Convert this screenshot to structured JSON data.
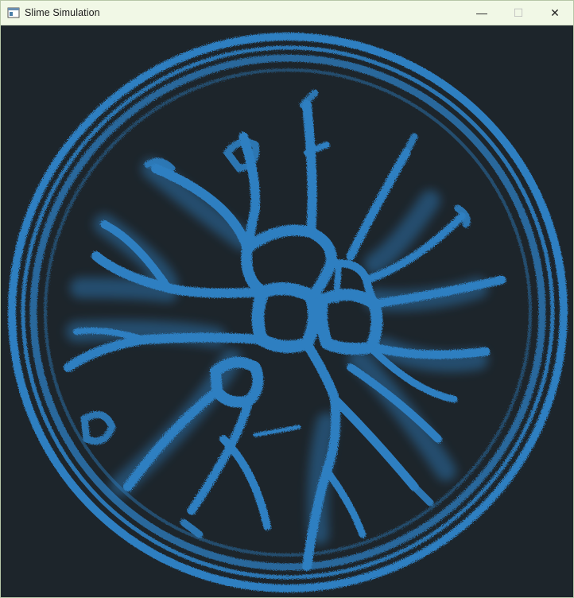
{
  "window": {
    "title": "Slime Simulation",
    "controls": {
      "minimize_icon": "minimize-icon",
      "maximize_icon": "maximize-icon",
      "close_icon": "close-icon",
      "minimize_glyph": "—",
      "maximize_glyph": "☐",
      "close_glyph": "✕"
    }
  },
  "colors": {
    "background": "#1d252b",
    "slime": "#2f7fc1",
    "titlebar": "#f1f8e6"
  }
}
